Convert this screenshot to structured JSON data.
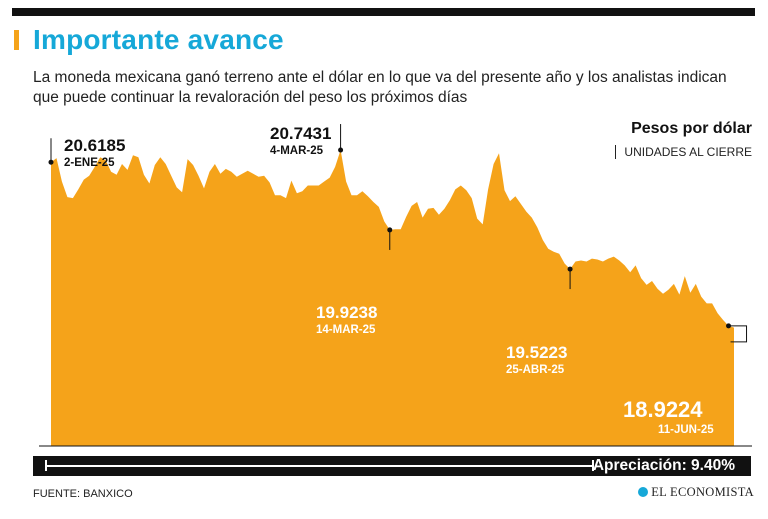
{
  "header": {
    "title": "Importante avance",
    "subtitle": "La moneda mexicana ganó terreno ante el dólar en lo que va del presente año y los analistas indican que puede continuar la revaloración del peso los próximos días"
  },
  "unit": {
    "title": "Pesos por dólar",
    "subtitle": "UNIDADES AL CIERRE"
  },
  "colors": {
    "accent": "#16a8d8",
    "area": "#f5a31a",
    "bar": "#111111"
  },
  "chart_data": {
    "type": "area",
    "title": "Pesos por dólar",
    "subtitle": "UNIDADES AL CIERRE",
    "xlabel": "",
    "ylabel": "",
    "x_start": "2-ENE-25",
    "x_end": "11-JUN-25",
    "ylim": [
      17.0,
      21.0
    ],
    "grid": false,
    "values": [
      20.6185,
      20.66,
      20.42,
      20.26,
      20.25,
      20.34,
      20.44,
      20.48,
      20.57,
      20.67,
      20.64,
      20.52,
      20.49,
      20.6,
      20.54,
      20.69,
      20.67,
      20.49,
      20.4,
      20.59,
      20.67,
      20.6,
      20.48,
      20.36,
      20.31,
      20.65,
      20.59,
      20.48,
      20.35,
      20.52,
      20.6,
      20.5,
      20.55,
      20.52,
      20.47,
      20.5,
      20.53,
      20.5,
      20.47,
      20.48,
      20.41,
      20.28,
      20.28,
      20.25,
      20.43,
      20.3,
      20.32,
      20.38,
      20.38,
      20.38,
      20.42,
      20.46,
      20.57,
      20.7431,
      20.42,
      20.28,
      20.28,
      20.32,
      20.27,
      20.21,
      20.16,
      20.01,
      19.9238,
      19.93,
      19.93,
      20.06,
      20.17,
      20.21,
      20.05,
      20.14,
      20.15,
      20.08,
      20.14,
      20.23,
      20.34,
      20.38,
      20.33,
      20.25,
      20.04,
      19.98,
      20.34,
      20.6,
      20.71,
      20.33,
      20.22,
      20.27,
      20.19,
      20.11,
      20.05,
      19.95,
      19.82,
      19.73,
      19.7,
      19.68,
      19.58,
      19.5223,
      19.6,
      19.61,
      19.6,
      19.63,
      19.62,
      19.6,
      19.63,
      19.65,
      19.61,
      19.56,
      19.49,
      19.56,
      19.43,
      19.36,
      19.4,
      19.32,
      19.27,
      19.31,
      19.37,
      19.26,
      19.45,
      19.28,
      19.37,
      19.24,
      19.17,
      19.17,
      19.07,
      19.0,
      18.94,
      18.9224
    ],
    "annotations": [
      {
        "value": "20.6185",
        "date": "2-ENE-25",
        "index": 0
      },
      {
        "value": "20.7431",
        "date": "4-MAR-25",
        "index": 53
      },
      {
        "value": "19.9238",
        "date": "14-MAR-25",
        "index": 62
      },
      {
        "value": "19.5223",
        "date": "25-ABR-25",
        "index": 95
      },
      {
        "value": "18.9224",
        "date": "11-JUN-25",
        "index": 124
      }
    ]
  },
  "footer": {
    "appreciation_label": "Apreciación: 9.40%",
    "source": "FUENTE: BANXICO",
    "brand": "EL ECONOMISTA"
  }
}
